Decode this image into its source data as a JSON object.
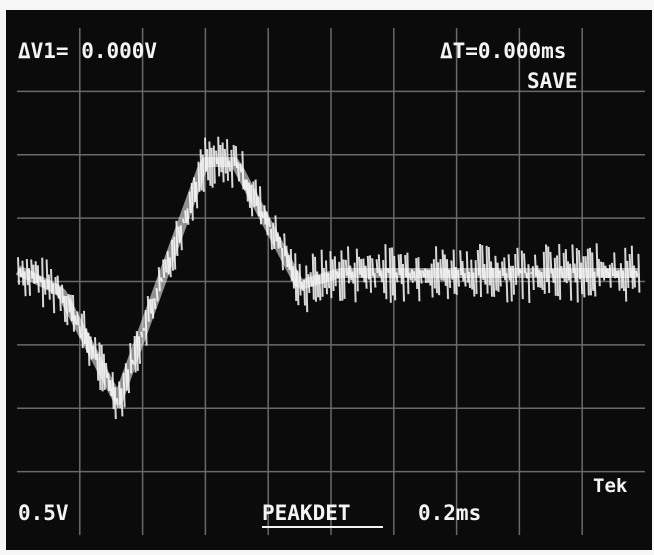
{
  "readouts": {
    "delta_v1": "ΔV1= 0.000V",
    "delta_t": "ΔT=0.000ms",
    "mode": "SAVE",
    "volts_per_div": "0.5V",
    "acquisition": "PEAKDET",
    "time_per_div": "0.2ms",
    "brand": "Tek"
  }
}
